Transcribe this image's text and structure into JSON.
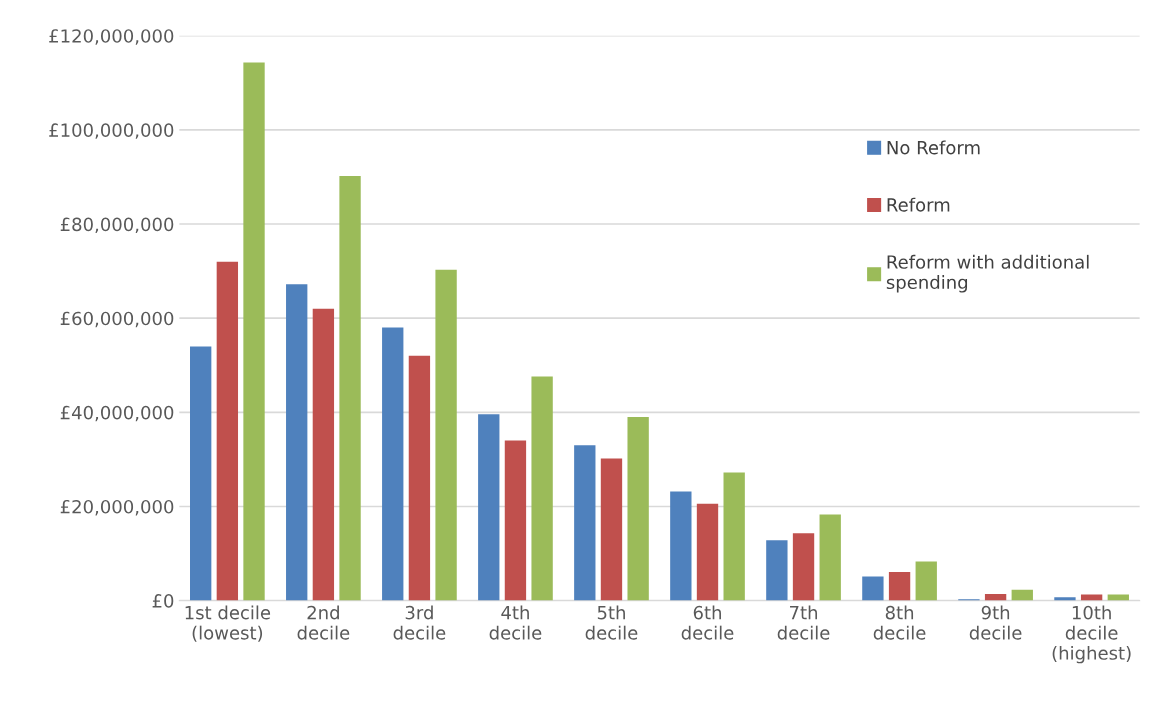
{
  "chart_data": {
    "type": "bar",
    "categories": [
      "1st decile\n(lowest)",
      "2nd\ndecile",
      "3rd\ndecile",
      "4th\ndecile",
      "5th\ndecile",
      "6th\ndecile",
      "7th\ndecile",
      "8th\ndecile",
      "9th\ndecile",
      "10th\ndecile\n(highest)"
    ],
    "series": [
      {
        "name": "No Reform",
        "color": "#4f81bd",
        "values": [
          54000000,
          67200000,
          58000000,
          39600000,
          33000000,
          23200000,
          12800000,
          5100000,
          300000,
          700000
        ]
      },
      {
        "name": "Reform",
        "color": "#c0504d",
        "values": [
          72000000,
          62000000,
          52000000,
          34000000,
          30200000,
          20600000,
          14300000,
          6100000,
          1400000,
          1300000
        ]
      },
      {
        "name": "Reform with additional\nspending",
        "color": "#9bbb59",
        "values": [
          114300000,
          90200000,
          70300000,
          47600000,
          39000000,
          27200000,
          18300000,
          8300000,
          2300000,
          1300000
        ]
      }
    ],
    "ylim": [
      0,
      120000000
    ],
    "yticks": [
      {
        "value": 0,
        "label": "£0"
      },
      {
        "value": 20000000,
        "label": "£20,000,000"
      },
      {
        "value": 40000000,
        "label": "£40,000,000"
      },
      {
        "value": 60000000,
        "label": "£60,000,000"
      },
      {
        "value": 80000000,
        "label": "£80,000,000"
      },
      {
        "value": 100000000,
        "label": "£100,000,000"
      },
      {
        "value": 120000000,
        "label": "£120,000,000"
      }
    ],
    "grid": "y",
    "legend": "right"
  }
}
